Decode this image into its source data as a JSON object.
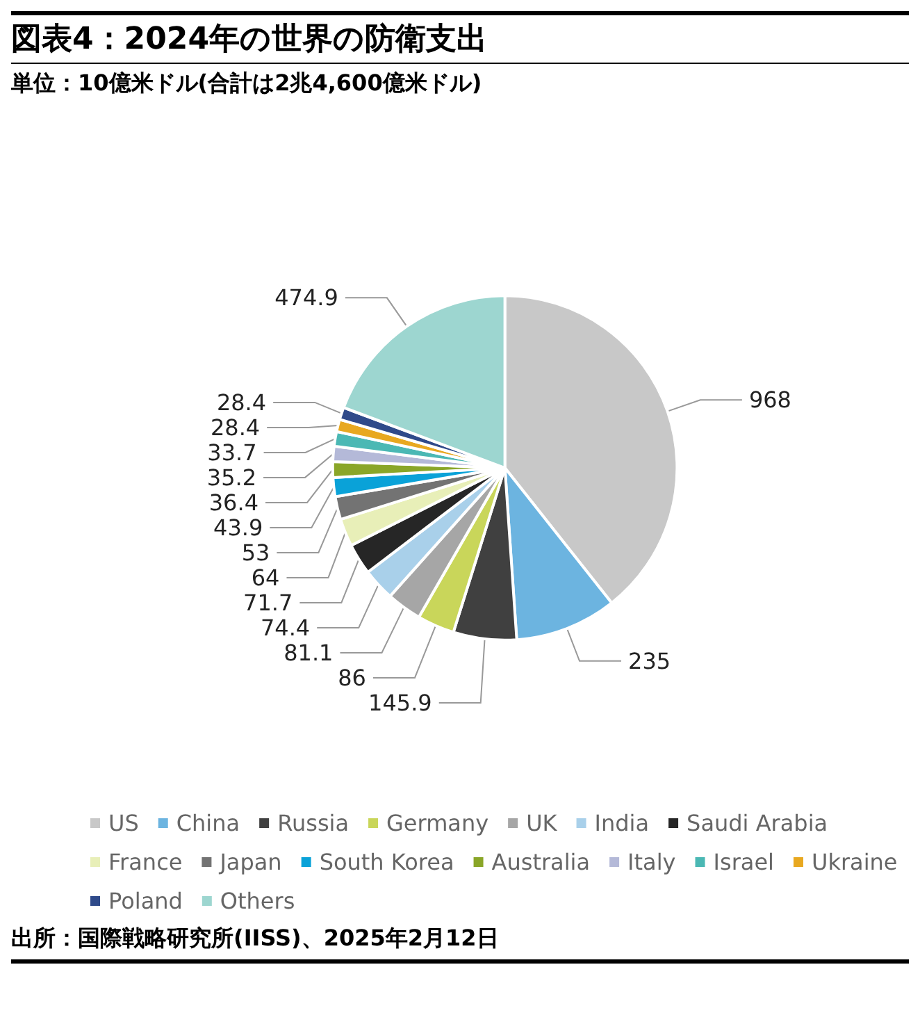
{
  "chart_data": {
    "type": "pie",
    "title": "図表4：2024年の世界の防衛支出",
    "subtitle": "単位：10億米ドル(合計は2兆4,600億米ドル)",
    "categories": [
      "US",
      "China",
      "Russia",
      "Germany",
      "UK",
      "India",
      "Saudi Arabia",
      "France",
      "Japan",
      "South Korea",
      "Australia",
      "Italy",
      "Israel",
      "Ukraine",
      "Poland",
      "Others"
    ],
    "values": [
      968,
      235,
      145.9,
      86,
      81.1,
      74.4,
      71.7,
      64,
      53,
      43.9,
      36.4,
      35.2,
      33.7,
      28.4,
      28.4,
      474.9
    ],
    "colors": [
      "#c8c8c8",
      "#6cb4e0",
      "#404040",
      "#c9d65a",
      "#a6a6a6",
      "#a9d0ea",
      "#262626",
      "#e8efb8",
      "#737373",
      "#0aa2d8",
      "#8aa628",
      "#b4b9d8",
      "#4bb8b4",
      "#e8a820",
      "#2f4a8a",
      "#9dd6d0"
    ],
    "data_labels": true,
    "legend": "bottom",
    "annotations": [
      "出所：国際戦略研究所(IISS)、2025年2月12日"
    ]
  }
}
